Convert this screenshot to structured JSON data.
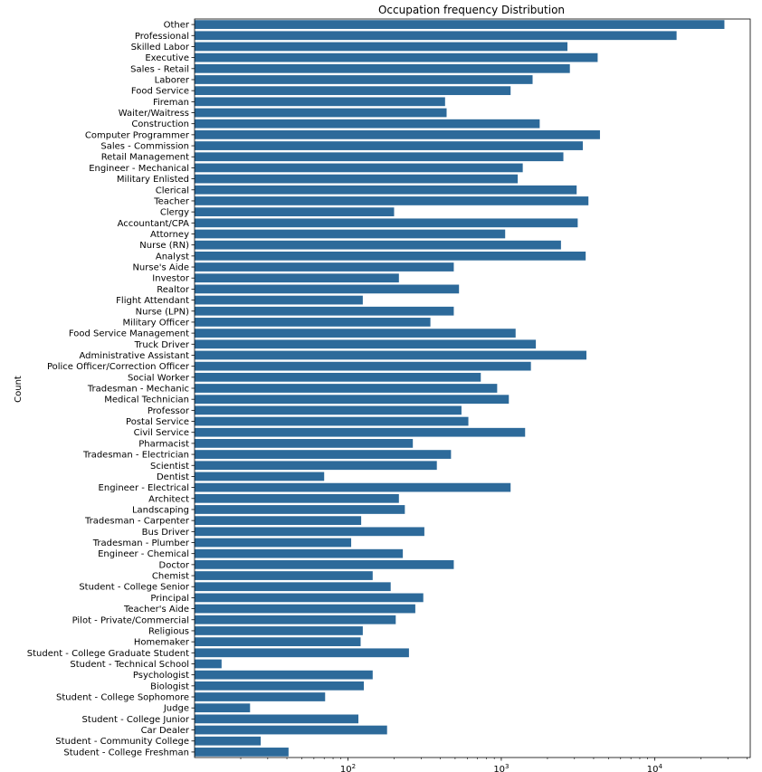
{
  "chart_data": {
    "type": "bar",
    "orientation": "horizontal",
    "title": "Occupation frequency Distribution",
    "xlabel": "",
    "ylabel": "Count",
    "x_scale": "log",
    "xlim": [
      10,
      42000
    ],
    "x_ticks": [
      {
        "value": 100,
        "base": "10",
        "exp": "2"
      },
      {
        "value": 1000,
        "base": "10",
        "exp": "3"
      },
      {
        "value": 10000,
        "base": "10",
        "exp": "4"
      }
    ],
    "grid": false,
    "bar_color": "#2d6a9a",
    "categories": [
      "Other",
      "Professional",
      "Skilled Labor",
      "Executive",
      "Sales - Retail",
      "Laborer",
      "Food Service",
      "Fireman",
      "Waiter/Waitress",
      "Construction",
      "Computer Programmer",
      "Sales - Commission",
      "Retail Management",
      "Engineer - Mechanical",
      "Military Enlisted",
      "Clerical",
      "Teacher",
      "Clergy",
      "Accountant/CPA",
      "Attorney",
      "Nurse (RN)",
      "Analyst",
      "Nurse's Aide",
      "Investor",
      "Realtor",
      "Flight Attendant",
      "Nurse (LPN)",
      "Military Officer",
      "Food Service Management",
      "Truck Driver",
      "Administrative Assistant",
      "Police Officer/Correction Officer",
      "Social Worker",
      "Tradesman - Mechanic",
      "Medical Technician",
      "Professor",
      "Postal Service",
      "Civil Service",
      "Pharmacist",
      "Tradesman - Electrician",
      "Scientist",
      "Dentist",
      "Engineer - Electrical",
      "Architect",
      "Landscaping",
      "Tradesman - Carpenter",
      "Bus Driver",
      "Tradesman - Plumber",
      "Engineer - Chemical",
      "Doctor",
      "Chemist",
      "Student - College Senior",
      "Principal",
      "Teacher's Aide",
      "Pilot - Private/Commercial",
      "Religious",
      "Homemaker",
      "Student - College Graduate Student",
      "Student - Technical School",
      "Psychologist",
      "Biologist",
      "Student - College Sophomore",
      "Judge",
      "Student - College Junior",
      "Car Dealer",
      "Student - Community College",
      "Student - College Freshman"
    ],
    "values": [
      28500,
      13900,
      2700,
      4250,
      2800,
      1600,
      1150,
      430,
      440,
      1780,
      4400,
      3400,
      2540,
      1380,
      1280,
      3100,
      3700,
      200,
      3150,
      1060,
      2450,
      3550,
      490,
      215,
      530,
      125,
      490,
      345,
      1240,
      1680,
      3590,
      1560,
      735,
      940,
      1120,
      550,
      610,
      1430,
      265,
      470,
      380,
      70,
      1150,
      215,
      235,
      122,
      315,
      105,
      228,
      490,
      145,
      190,
      310,
      275,
      205,
      125,
      121,
      250,
      15,
      145,
      127,
      71,
      23,
      117,
      180,
      27,
      41
    ]
  }
}
